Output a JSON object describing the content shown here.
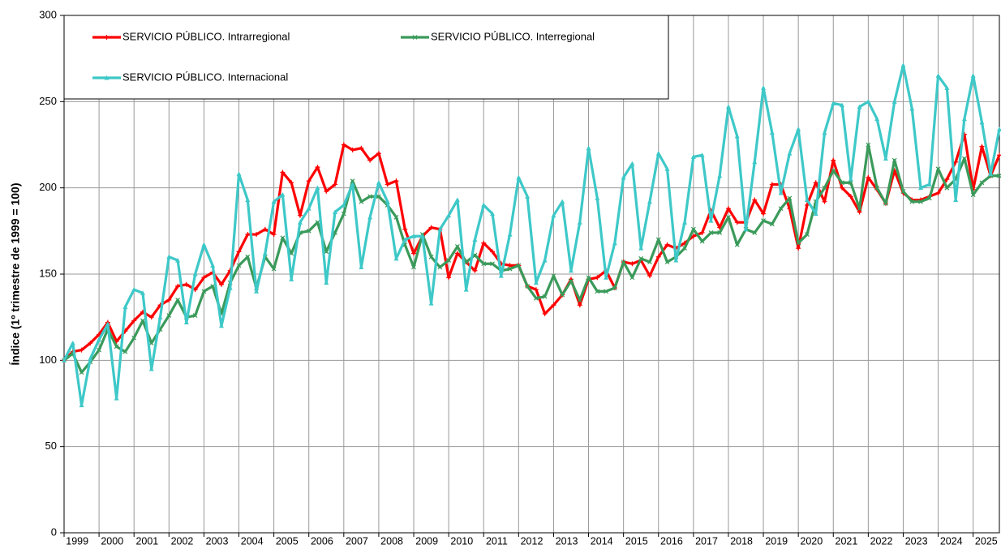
{
  "chart_data": {
    "type": "line",
    "y_label": "Índice (1º trimestre de 1999 = 100)",
    "categories": [
      "1999",
      null,
      null,
      null,
      "2000",
      null,
      null,
      null,
      "2001",
      null,
      null,
      null,
      "2002",
      null,
      null,
      null,
      "2003",
      null,
      null,
      null,
      "2004",
      null,
      null,
      null,
      "2005",
      null,
      null,
      null,
      "2006",
      null,
      null,
      null,
      "2007",
      null,
      null,
      null,
      "2008",
      null,
      null,
      null,
      "2009",
      null,
      null,
      null,
      "2010",
      null,
      null,
      null,
      "2011",
      null,
      null,
      null,
      "2012",
      null,
      null,
      null,
      "2013",
      null,
      null,
      null,
      "2014",
      null,
      null,
      null,
      "2015",
      null,
      null,
      null,
      "2016",
      null,
      null,
      null,
      "2017",
      null,
      null,
      null,
      "2018",
      null,
      null,
      null,
      "2019",
      null,
      null,
      null,
      "2020",
      null,
      null,
      null,
      "2021",
      null,
      null,
      null,
      "2022",
      null,
      null,
      null,
      "2023",
      null,
      null,
      null,
      "2024",
      null,
      null,
      null,
      "2025",
      null,
      null,
      null
    ],
    "series": [
      {
        "name": "SERVICIO PÚBLICO. Intrarregional",
        "color": "#ff0000",
        "marker": "plus",
        "values": [
          100,
          105,
          106,
          110,
          115,
          122,
          111,
          117,
          123,
          128,
          125,
          132,
          135,
          143,
          144,
          141,
          148,
          151,
          144,
          152,
          163,
          173,
          173,
          176,
          173,
          209,
          203,
          184,
          204,
          212,
          198,
          202,
          225,
          222,
          223,
          216,
          220,
          202,
          204,
          176,
          162,
          172,
          177,
          176,
          148,
          162,
          157,
          152,
          168,
          163,
          156,
          155,
          155,
          143,
          141,
          127,
          132,
          138,
          147,
          132,
          147,
          148,
          152,
          142,
          157,
          156,
          158,
          149,
          160,
          167,
          165,
          168,
          172,
          174,
          187,
          177,
          188,
          180,
          180,
          193,
          185,
          202,
          202,
          188,
          165,
          190,
          203,
          192,
          216,
          200,
          195,
          186,
          206,
          199,
          191,
          210,
          197,
          193,
          193,
          195,
          197,
          205,
          215,
          231,
          199,
          224,
          207,
          219
        ]
      },
      {
        "name": "SERVICIO PÚBLICO. Interregional",
        "color": "#3a9a5a",
        "marker": "x",
        "values": [
          100,
          104,
          93,
          99,
          106,
          118,
          108,
          105,
          113,
          123,
          110,
          118,
          126,
          135,
          125,
          126,
          140,
          143,
          127,
          145,
          155,
          160,
          142,
          160,
          153,
          171,
          162,
          174,
          175,
          180,
          163,
          174,
          185,
          204,
          192,
          195,
          195,
          190,
          183,
          167,
          154,
          173,
          160,
          154,
          158,
          166,
          157,
          161,
          156,
          156,
          152,
          153,
          155,
          143,
          136,
          137,
          149,
          138,
          146,
          135,
          148,
          140,
          140,
          142,
          157,
          148,
          159,
          157,
          170,
          157,
          160,
          165,
          176,
          169,
          174,
          174,
          183,
          167,
          176,
          174,
          181,
          179,
          188,
          194,
          168,
          173,
          192,
          200,
          210,
          203,
          203,
          188,
          225,
          200,
          191,
          216,
          198,
          192,
          192,
          194,
          211,
          200,
          205,
          217,
          196,
          203,
          207,
          207
        ]
      },
      {
        "name": "SERVICIO PÚBLICO. Internacional",
        "color": "#3ec8c8",
        "marker": "triangle",
        "values": [
          100,
          110,
          74,
          101,
          112,
          121,
          78,
          131,
          141,
          139,
          95,
          125,
          160,
          158,
          122,
          150,
          167,
          155,
          120,
          142,
          208,
          193,
          140,
          162,
          192,
          196,
          147,
          180,
          188,
          200,
          145,
          186,
          190,
          202,
          154,
          183,
          203,
          192,
          159,
          170,
          172,
          172,
          133,
          176,
          184,
          193,
          141,
          170,
          190,
          185,
          149,
          173,
          206,
          195,
          145,
          158,
          184,
          192,
          152,
          180,
          223,
          194,
          148,
          168,
          206,
          214,
          165,
          192,
          220,
          211,
          158,
          180,
          218,
          219,
          181,
          207,
          247,
          230,
          176,
          215,
          258,
          232,
          197,
          220,
          234,
          193,
          185,
          232,
          249,
          248,
          205,
          247,
          250,
          240,
          217,
          250,
          271,
          246,
          200,
          202,
          265,
          258,
          193,
          240,
          265,
          238,
          208,
          234
        ]
      }
    ],
    "ylim": [
      0,
      300
    ],
    "yticks": [
      0,
      50,
      100,
      150,
      200,
      250,
      300
    ],
    "grid": true,
    "legend": "top-left"
  }
}
